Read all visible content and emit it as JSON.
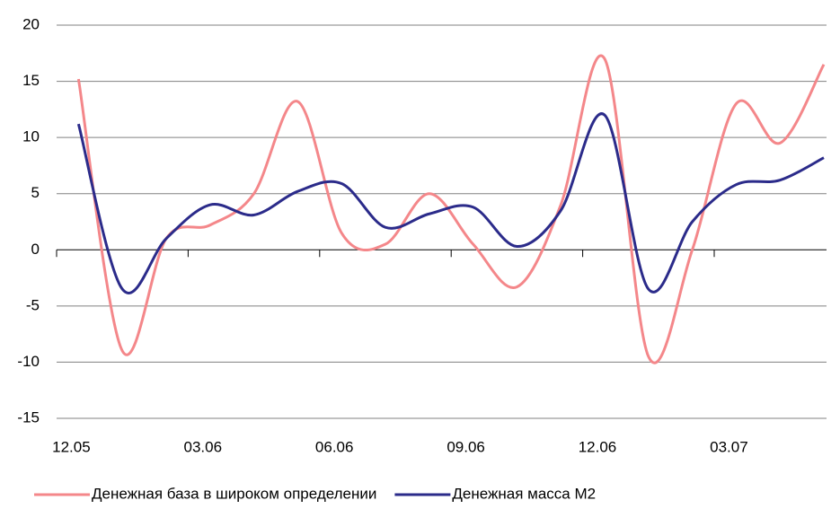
{
  "chart_data": {
    "type": "line",
    "categories": [
      "12.05",
      null,
      null,
      "03.06",
      null,
      null,
      "06.06",
      null,
      null,
      "09.06",
      null,
      null,
      "12.06",
      null,
      null,
      "03.07",
      null,
      null
    ],
    "series": [
      {
        "name": "Денежная база в широком определении",
        "color": "#f4878a",
        "values": [
          15.2,
          -9,
          1,
          2.2,
          5,
          13.2,
          1.5,
          0.5,
          5,
          0.5,
          -3.3,
          4,
          17,
          -9.5,
          0,
          13,
          9.5,
          16.5
        ]
      },
      {
        "name": "Денежная масса М2",
        "color": "#2b2b8a",
        "values": [
          11.2,
          -3.5,
          1,
          4,
          3.1,
          5.2,
          5.9,
          2,
          3.2,
          3.8,
          0.3,
          3.5,
          12,
          -3.5,
          2.5,
          5.8,
          6.2,
          8.2
        ]
      }
    ],
    "ylim": [
      -15,
      20
    ],
    "yticks": [
      -15,
      -10,
      -5,
      0,
      5,
      10,
      15,
      20
    ],
    "grid": true,
    "legend": "bottom"
  }
}
